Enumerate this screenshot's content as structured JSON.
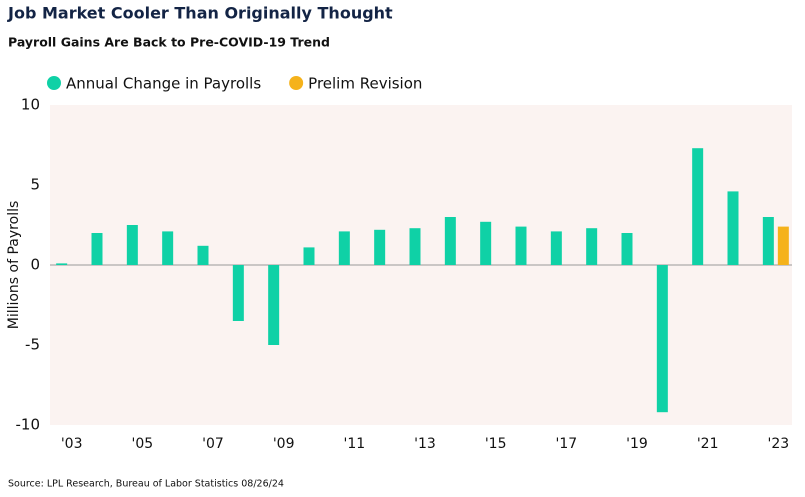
{
  "chart_data": {
    "type": "bar",
    "title": "Job Market Cooler Than Originally Thought",
    "subtitle": "Payroll Gains Are Back to Pre-COVID-19 Trend",
    "ylabel": "Millions of Payrolls",
    "source": "Source: LPL Research, Bureau of Labor Statistics 08/26/24",
    "categories": [
      "'03",
      null,
      "'05",
      null,
      "'07",
      null,
      "'09",
      null,
      "'11",
      null,
      "'13",
      null,
      "'15",
      null,
      "'17",
      null,
      "'19",
      null,
      "'21",
      null,
      "'23"
    ],
    "series": [
      {
        "name": "Annual Change in Payrolls",
        "color": "#0fd1a6",
        "values": [
          0.1,
          2.0,
          2.5,
          2.1,
          1.2,
          -3.5,
          -5.0,
          1.1,
          2.1,
          2.2,
          2.3,
          3.0,
          2.7,
          2.4,
          2.1,
          2.3,
          2.0,
          -9.2,
          7.3,
          4.6,
          3.0
        ]
      },
      {
        "name": "Prelim Revision",
        "color": "#f5b21b",
        "values": [
          null,
          null,
          null,
          null,
          null,
          null,
          null,
          null,
          null,
          null,
          null,
          null,
          null,
          null,
          null,
          null,
          null,
          null,
          null,
          null,
          2.4
        ]
      }
    ],
    "ylim": [
      -10,
      10
    ],
    "yticks": [
      -10,
      -5,
      0,
      5,
      10
    ],
    "grid": false
  }
}
